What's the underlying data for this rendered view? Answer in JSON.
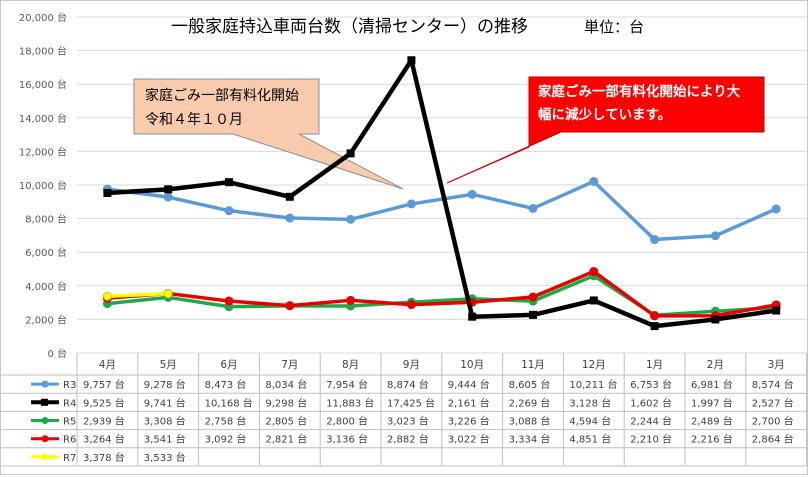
{
  "chart_data": {
    "type": "line",
    "title": "一般家庭持込車両台数（清掃センター）の推移",
    "unit_label": "単位：台",
    "categories": [
      "4月",
      "5月",
      "6月",
      "7月",
      "8月",
      "9月",
      "10月",
      "11月",
      "12月",
      "1月",
      "2月",
      "3月"
    ],
    "ylim": [
      0,
      20000
    ],
    "yticks": [
      "0 台",
      "2,000 台",
      "4,000 台",
      "6,000 台",
      "8,000 台",
      "10,000 台",
      "12,000 台",
      "14,000 台",
      "16,000 台",
      "18,000 台",
      "20,000 台"
    ],
    "grid": true,
    "series": [
      {
        "name": "R3",
        "color": "#5b9bd5",
        "values": [
          9757,
          9278,
          8473,
          8034,
          7954,
          8874,
          9444,
          8605,
          10211,
          6753,
          6981,
          8574
        ],
        "labels": [
          "9,757 台",
          "9,278 台",
          "8,473 台",
          "8,034 台",
          "7,954 台",
          "8,874 台",
          "9,444 台",
          "8,605 台",
          "10,211 台",
          "6,753 台",
          "6,981 台",
          "8,574 台"
        ]
      },
      {
        "name": "R4",
        "color": "#000000",
        "values": [
          9525,
          9741,
          10168,
          9298,
          11883,
          17425,
          2161,
          2269,
          3128,
          1602,
          1997,
          2527
        ],
        "labels": [
          "9,525 台",
          "9,741 台",
          "10,168 台",
          "9,298 台",
          "11,883 台",
          "17,425 台",
          "2,161 台",
          "2,269 台",
          "3,128 台",
          "1,602 台",
          "1,997 台",
          "2,527 台"
        ]
      },
      {
        "name": "R5",
        "color": "#1fa84a",
        "values": [
          2939,
          3308,
          2758,
          2805,
          2800,
          3023,
          3226,
          3088,
          4594,
          2244,
          2489,
          2700
        ],
        "labels": [
          "2,939 台",
          "3,308 台",
          "2,758 台",
          "2,805 台",
          "2,800 台",
          "3,023 台",
          "3,226 台",
          "3,088 台",
          "4,594 台",
          "2,244 台",
          "2,489 台",
          "2,700 台"
        ]
      },
      {
        "name": "R6",
        "color": "#e60000",
        "values": [
          3264,
          3541,
          3092,
          2821,
          3136,
          2882,
          3022,
          3334,
          4851,
          2210,
          2216,
          2864
        ],
        "labels": [
          "3,264 台",
          "3,541 台",
          "3,092 台",
          "2,821 台",
          "3,136 台",
          "2,882 台",
          "3,022 台",
          "3,334 台",
          "4,851 台",
          "2,210 台",
          "2,216 台",
          "2,864 台"
        ]
      },
      {
        "name": "R7",
        "color": "#ffff00",
        "values": [
          3378,
          3533,
          null,
          null,
          null,
          null,
          null,
          null,
          null,
          null,
          null,
          null
        ],
        "labels": [
          "3,378 台",
          "3,533 台",
          "",
          "",
          "",
          "",
          "",
          "",
          "",
          "",
          "",
          ""
        ]
      }
    ],
    "annotations": [
      {
        "lines": [
          "家庭ごみ一部有料化開始",
          "令和４年１０月"
        ],
        "fill": "#f8cbad",
        "text_color": "#000000"
      },
      {
        "lines": [
          "家庭ごみ一部有料化開始により大",
          "幅に減少しています。"
        ],
        "fill": "#ff0000",
        "text_color": "#ffffff"
      }
    ]
  }
}
